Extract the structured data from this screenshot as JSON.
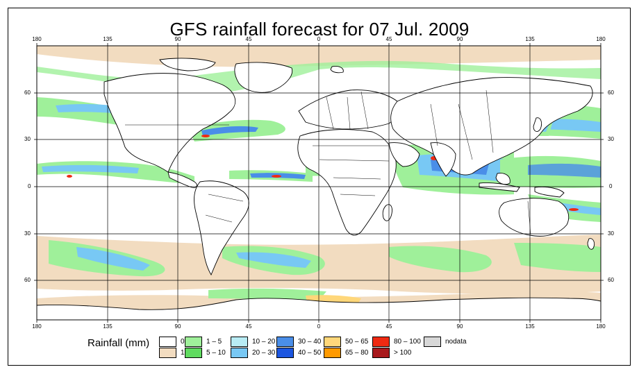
{
  "title": "GFS rainfall forecast for 07 Jul. 2009",
  "map": {
    "projection": "equirectangular",
    "lon_range": [
      -180,
      180
    ],
    "lat_range": [
      -90,
      90
    ],
    "x_tick_labels": [
      "180",
      "135",
      "90",
      "45",
      "0",
      "45",
      "90",
      "135",
      "180"
    ],
    "y_tick_labels": [
      "60",
      "30",
      "0",
      "30",
      "60"
    ],
    "grid": true
  },
  "legend": {
    "title": "Rainfall (mm)",
    "items": [
      {
        "label": "0",
        "color": "#ffffff"
      },
      {
        "label": "1",
        "color": "#f2dcc0"
      },
      {
        "label": "1 – 5",
        "color": "#9ff09a"
      },
      {
        "label": "5 – 10",
        "color": "#5fdb5f"
      },
      {
        "label": "10 – 20",
        "color": "#b8ecf4"
      },
      {
        "label": "20 – 30",
        "color": "#78c8f4"
      },
      {
        "label": "30 – 40",
        "color": "#4a8ee8"
      },
      {
        "label": "40 – 50",
        "color": "#1c56e0"
      },
      {
        "label": "50 – 65",
        "color": "#ffd77a"
      },
      {
        "label": "65 – 80",
        "color": "#ff9a00"
      },
      {
        "label": "80 – 100",
        "color": "#ef2a12"
      },
      {
        "label": "> 100",
        "color": "#a8191c"
      },
      {
        "label": "nodata",
        "color": "#d7d7d7"
      }
    ]
  }
}
